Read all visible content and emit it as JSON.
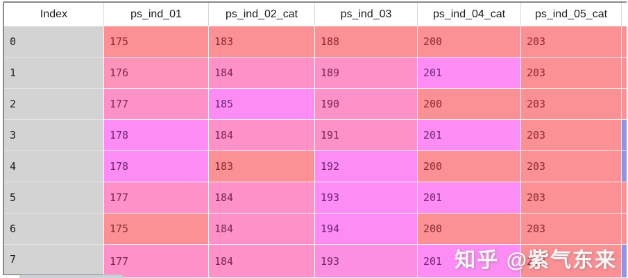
{
  "table": {
    "index_header": "Index",
    "index_values": [
      "0",
      "1",
      "2",
      "3",
      "4",
      "5",
      "6",
      "7"
    ],
    "columns": [
      {
        "label": "ps_ind_01",
        "values": [
          "175",
          "176",
          "177",
          "178",
          "178",
          "177",
          "175",
          "177"
        ],
        "colors": [
          "#fb9095",
          "#fd94ba",
          "#fe92c8",
          "#fd8df4",
          "#fd8df4",
          "#fe92c8",
          "#fb9095",
          "#fe92c8"
        ]
      },
      {
        "label": "ps_ind_02_cat",
        "values": [
          "183",
          "184",
          "185",
          "184",
          "183",
          "184",
          "184",
          "184"
        ],
        "colors": [
          "#fb9095",
          "#fe92c8",
          "#fd8df4",
          "#fe92c8",
          "#fb9095",
          "#fe92c8",
          "#fe92c8",
          "#fe92c8"
        ]
      },
      {
        "label": "ps_ind_03",
        "values": [
          "188",
          "189",
          "190",
          "191",
          "192",
          "193",
          "194",
          "193"
        ],
        "colors": [
          "#fb9095",
          "#fe92c8",
          "#fe92c8",
          "#fe92c8",
          "#fd8df4",
          "#fd8df4",
          "#fd8df4",
          "#fd8fe0"
        ]
      },
      {
        "label": "ps_ind_04_cat",
        "values": [
          "200",
          "201",
          "200",
          "201",
          "200",
          "201",
          "200",
          "201"
        ],
        "colors": [
          "#fb9095",
          "#fd8df4",
          "#fb9095",
          "#fd8df4",
          "#fb9095",
          "#fd8df4",
          "#fb9095",
          "#fd8df4"
        ]
      },
      {
        "label": "ps_ind_05_cat",
        "values": [
          "203",
          "203",
          "203",
          "203",
          "203",
          "203",
          "203",
          "203"
        ],
        "colors": [
          "#fb9095",
          "#fb9095",
          "#fb9095",
          "#fb9095",
          "#fb9095",
          "#fb9095",
          "#fb9095",
          "#fb9095"
        ]
      }
    ],
    "partial_next_column_colors": [
      "#fb9095",
      "#fb9095",
      "#fb9095",
      "#9193e3",
      "#9193e3",
      "#fb9095",
      "#fb9095",
      "#9193e3"
    ],
    "value_text_colors": {
      "#fb9095": "#8a2b30",
      "#fd94ba": "#84264d",
      "#fe92c8": "#7c2456",
      "#fd8fe0": "#762366",
      "#fd8df4": "#712371"
    },
    "index_colors": {
      "bg": "#d3d3d3",
      "text": "#1c1c1c"
    },
    "header_colors": {
      "bg": "#ffffff",
      "text": "#1b1b1b"
    }
  },
  "watermark": {
    "text": "知乎 @紫气东来"
  }
}
